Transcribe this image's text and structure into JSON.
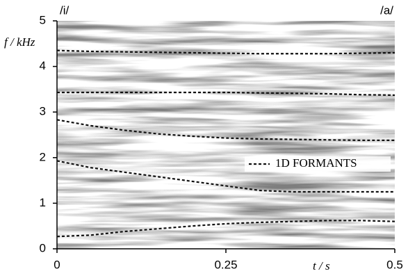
{
  "chart_data": {
    "type": "line",
    "annotations": [
      "/i/",
      "/a/"
    ],
    "ylabel": "f / kHz",
    "xlabel": "t / s",
    "x": [
      0,
      0.05,
      0.1,
      0.15,
      0.2,
      0.25,
      0.3,
      0.35,
      0.4,
      0.45,
      0.5
    ],
    "series": [
      {
        "name": "1D FORMANTS",
        "color": "#111111",
        "dashed": true,
        "tracks": [
          [
            0.27,
            0.3,
            0.38,
            0.44,
            0.5,
            0.55,
            0.58,
            0.6,
            0.62,
            0.62,
            0.6
          ],
          [
            1.93,
            1.78,
            1.68,
            1.58,
            1.48,
            1.38,
            1.28,
            1.25,
            1.25,
            1.25,
            1.25
          ],
          [
            2.83,
            2.7,
            2.6,
            2.52,
            2.47,
            2.43,
            2.41,
            2.4,
            2.39,
            2.38,
            2.38
          ],
          [
            3.43,
            3.43,
            3.43,
            3.43,
            3.43,
            3.43,
            3.42,
            3.41,
            3.4,
            3.38,
            3.37
          ],
          [
            4.35,
            4.33,
            4.32,
            4.31,
            4.3,
            4.29,
            4.28,
            4.28,
            4.28,
            4.29,
            4.3
          ]
        ]
      }
    ],
    "xlim": [
      0,
      0.5
    ],
    "xticks": [
      0,
      0.25,
      0.5
    ],
    "ylim": [
      0,
      5
    ],
    "yticks": [
      0,
      1,
      2,
      3,
      4,
      5
    ]
  }
}
